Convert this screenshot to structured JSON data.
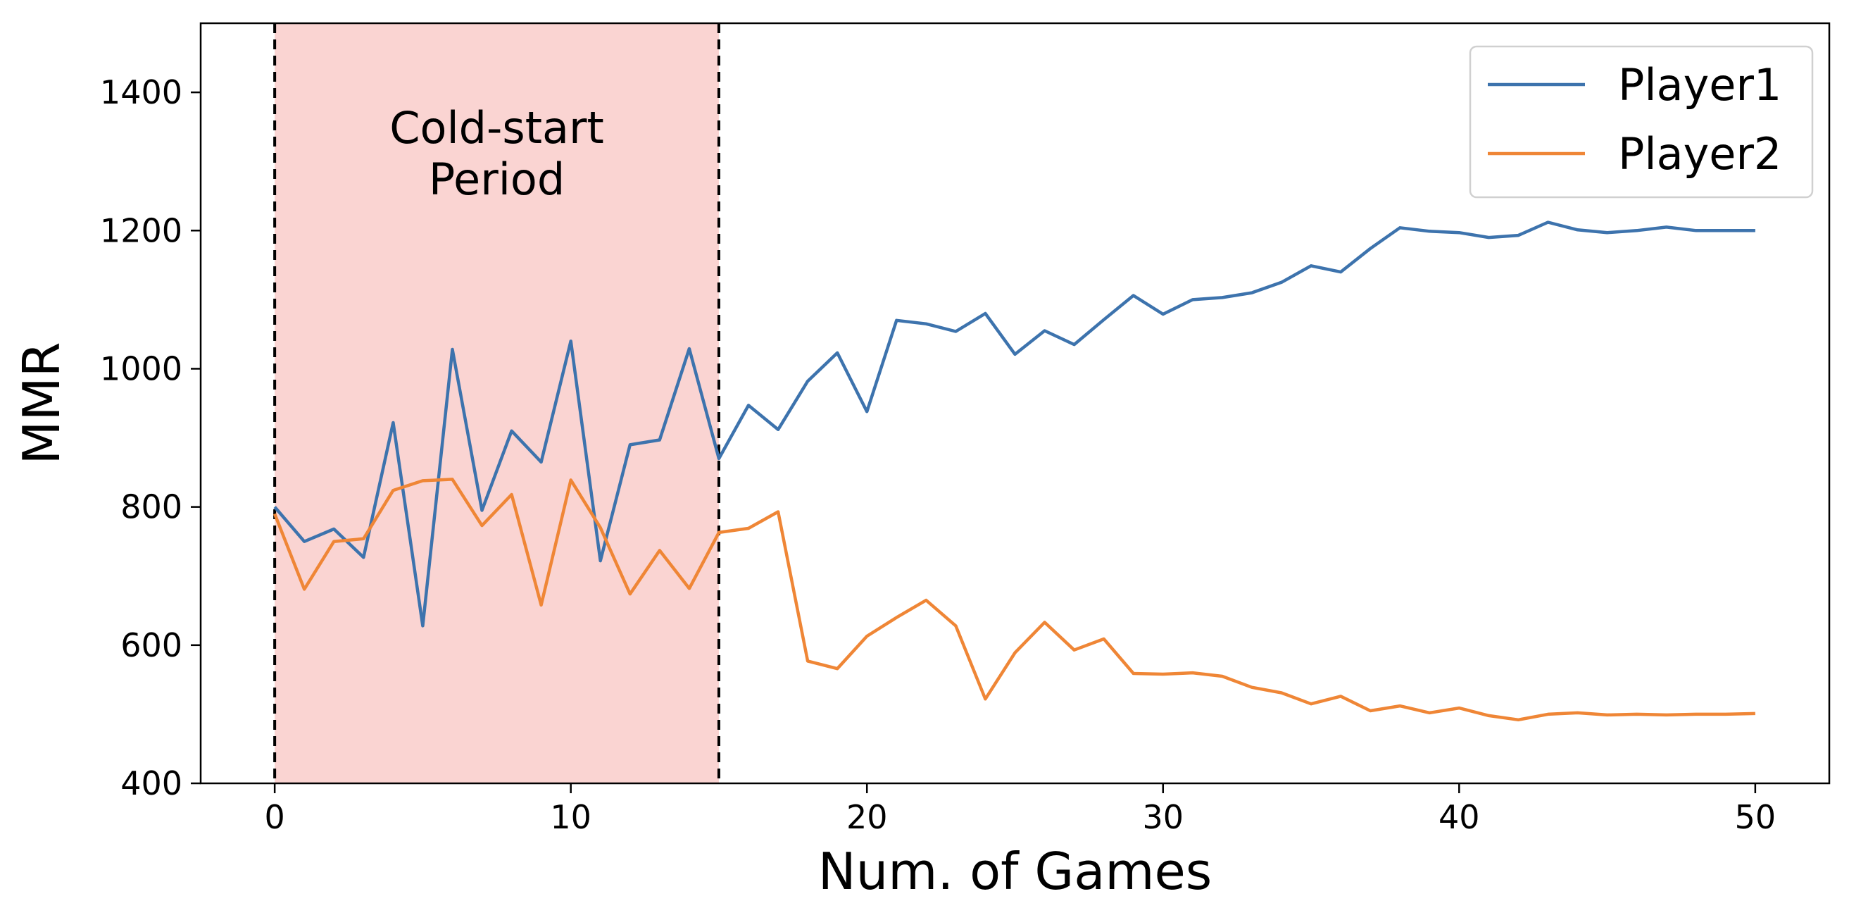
{
  "chart_data": {
    "type": "line",
    "title": "",
    "xlabel": "Num. of Games",
    "ylabel": "MMR",
    "xlim": [
      -2.5,
      52.5
    ],
    "ylim": [
      400,
      1500
    ],
    "xticks": [
      0,
      10,
      20,
      30,
      40,
      50
    ],
    "yticks": [
      400,
      600,
      800,
      1000,
      1200,
      1400
    ],
    "grid": false,
    "legend_position": "top-right",
    "shaded_region": {
      "x_start": 0,
      "x_end": 15,
      "label_lines": [
        "Cold-start",
        "Period"
      ],
      "color": "#fad4d2"
    },
    "x": [
      0,
      1,
      2,
      3,
      4,
      5,
      6,
      7,
      8,
      9,
      10,
      11,
      12,
      13,
      14,
      15,
      16,
      17,
      18,
      19,
      20,
      21,
      22,
      23,
      24,
      25,
      26,
      27,
      28,
      29,
      30,
      31,
      32,
      33,
      34,
      35,
      36,
      37,
      38,
      39,
      40,
      41,
      42,
      43,
      44,
      45,
      46,
      47,
      48,
      49,
      50
    ],
    "series": [
      {
        "name": "Player1",
        "color": "#3d73ad",
        "values": [
          800,
          750,
          768,
          727,
          922,
          628,
          1028,
          795,
          910,
          865,
          1040,
          722,
          890,
          897,
          1029,
          870,
          947,
          912,
          982,
          1023,
          938,
          1070,
          1065,
          1054,
          1080,
          1021,
          1055,
          1035,
          1071,
          1106,
          1079,
          1100,
          1103,
          1110,
          1125,
          1149,
          1140,
          1174,
          1204,
          1199,
          1197,
          1190,
          1193,
          1212,
          1201,
          1197,
          1200,
          1205,
          1200,
          1200,
          1200
        ]
      },
      {
        "name": "Player2",
        "color": "#ef8636",
        "values": [
          790,
          681,
          750,
          754,
          824,
          838,
          840,
          773,
          818,
          658,
          839,
          770,
          674,
          737,
          682,
          763,
          769,
          793,
          577,
          566,
          613,
          640,
          665,
          628,
          522,
          589,
          633,
          593,
          609,
          559,
          558,
          560,
          555,
          539,
          531,
          515,
          526,
          505,
          512,
          502,
          509,
          498,
          492,
          500,
          502,
          499,
          500,
          499,
          500,
          500,
          501
        ]
      }
    ]
  }
}
